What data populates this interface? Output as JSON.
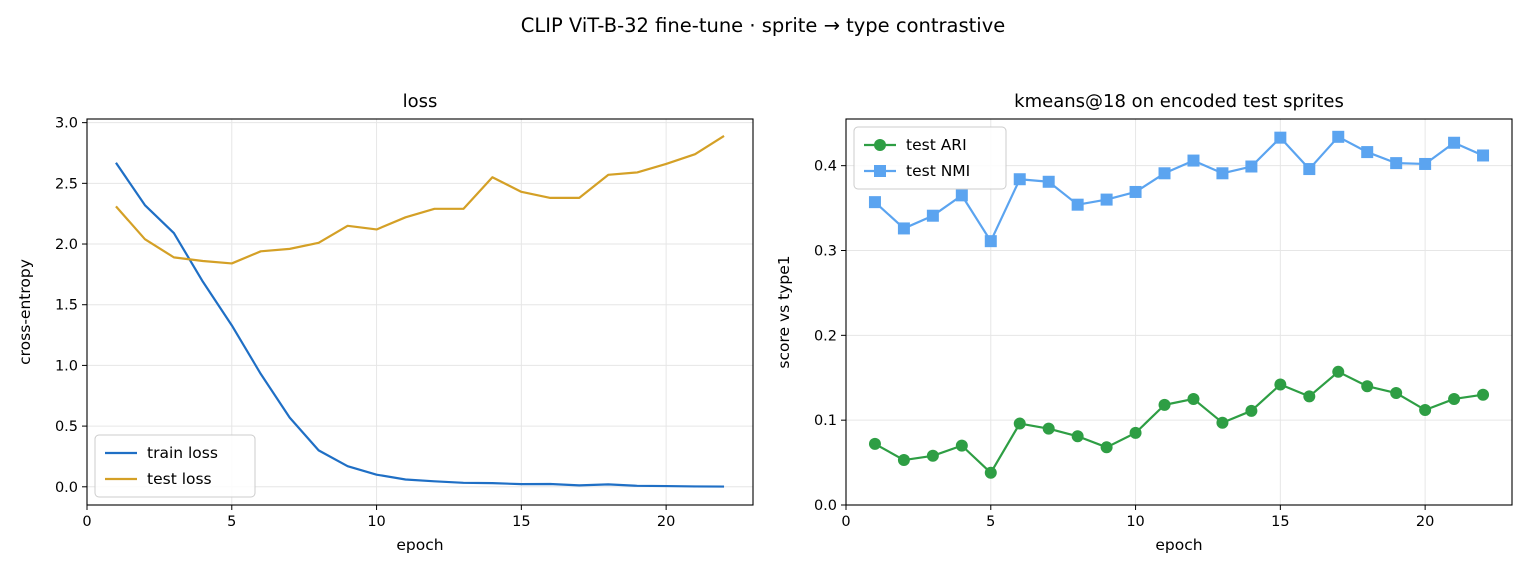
{
  "figure": {
    "suptitle": "CLIP ViT-B-32 fine-tune · sprite → type contrastive"
  },
  "colors": {
    "train_loss": "#1f6fc5",
    "test_loss": "#d4a026",
    "test_ari": "#2e9e44",
    "test_nmi": "#5ba4f0",
    "grid": "#e6e6e6"
  },
  "chart_data": [
    {
      "type": "line",
      "title": "loss",
      "xlabel": "epoch",
      "ylabel": "cross-entropy",
      "xlim": [
        0,
        23
      ],
      "ylim": [
        -0.15,
        3.03
      ],
      "xticks": [
        0,
        5,
        10,
        15,
        20
      ],
      "yticks": [
        0.0,
        0.5,
        1.0,
        1.5,
        2.0,
        2.5,
        3.0
      ],
      "grid": true,
      "legend": "bottom-left",
      "x": [
        1,
        2,
        3,
        4,
        5,
        6,
        7,
        8,
        9,
        10,
        11,
        12,
        13,
        14,
        15,
        16,
        17,
        18,
        19,
        20,
        21,
        22
      ],
      "series": [
        {
          "name": "train loss",
          "color": "#1f6fc5",
          "marker": "none",
          "values": [
            2.67,
            2.32,
            2.09,
            1.69,
            1.33,
            0.93,
            0.57,
            0.3,
            0.17,
            0.1,
            0.06,
            0.045,
            0.033,
            0.03,
            0.022,
            0.023,
            0.012,
            0.02,
            0.008,
            0.006,
            0.003,
            0.002
          ]
        },
        {
          "name": "test loss",
          "color": "#d4a026",
          "marker": "none",
          "values": [
            2.31,
            2.04,
            1.89,
            1.86,
            1.84,
            1.94,
            1.96,
            2.01,
            2.15,
            2.12,
            2.22,
            2.29,
            2.29,
            2.55,
            2.43,
            2.38,
            2.38,
            2.57,
            2.59,
            2.66,
            2.74,
            2.89
          ]
        }
      ]
    },
    {
      "type": "line",
      "title": "kmeans@18 on encoded test sprites",
      "xlabel": "epoch",
      "ylabel": "score vs type1",
      "xlim": [
        0,
        23
      ],
      "ylim": [
        0.0,
        0.455
      ],
      "xticks": [
        0,
        5,
        10,
        15,
        20
      ],
      "yticks": [
        0.0,
        0.1,
        0.2,
        0.3,
        0.4
      ],
      "grid": true,
      "legend": "top-left",
      "x": [
        1,
        2,
        3,
        4,
        5,
        6,
        7,
        8,
        9,
        10,
        11,
        12,
        13,
        14,
        15,
        16,
        17,
        18,
        19,
        20,
        21,
        22
      ],
      "series": [
        {
          "name": "test ARI",
          "color": "#2e9e44",
          "marker": "circle",
          "values": [
            0.072,
            0.053,
            0.058,
            0.07,
            0.038,
            0.096,
            0.09,
            0.081,
            0.068,
            0.085,
            0.118,
            0.125,
            0.097,
            0.111,
            0.142,
            0.128,
            0.157,
            0.14,
            0.132,
            0.112,
            0.125,
            0.13
          ]
        },
        {
          "name": "test NMI",
          "color": "#5ba4f0",
          "marker": "square",
          "values": [
            0.357,
            0.326,
            0.341,
            0.365,
            0.311,
            0.384,
            0.381,
            0.354,
            0.36,
            0.369,
            0.391,
            0.406,
            0.391,
            0.399,
            0.433,
            0.396,
            0.434,
            0.416,
            0.403,
            0.402,
            0.427,
            0.412
          ]
        }
      ]
    }
  ]
}
